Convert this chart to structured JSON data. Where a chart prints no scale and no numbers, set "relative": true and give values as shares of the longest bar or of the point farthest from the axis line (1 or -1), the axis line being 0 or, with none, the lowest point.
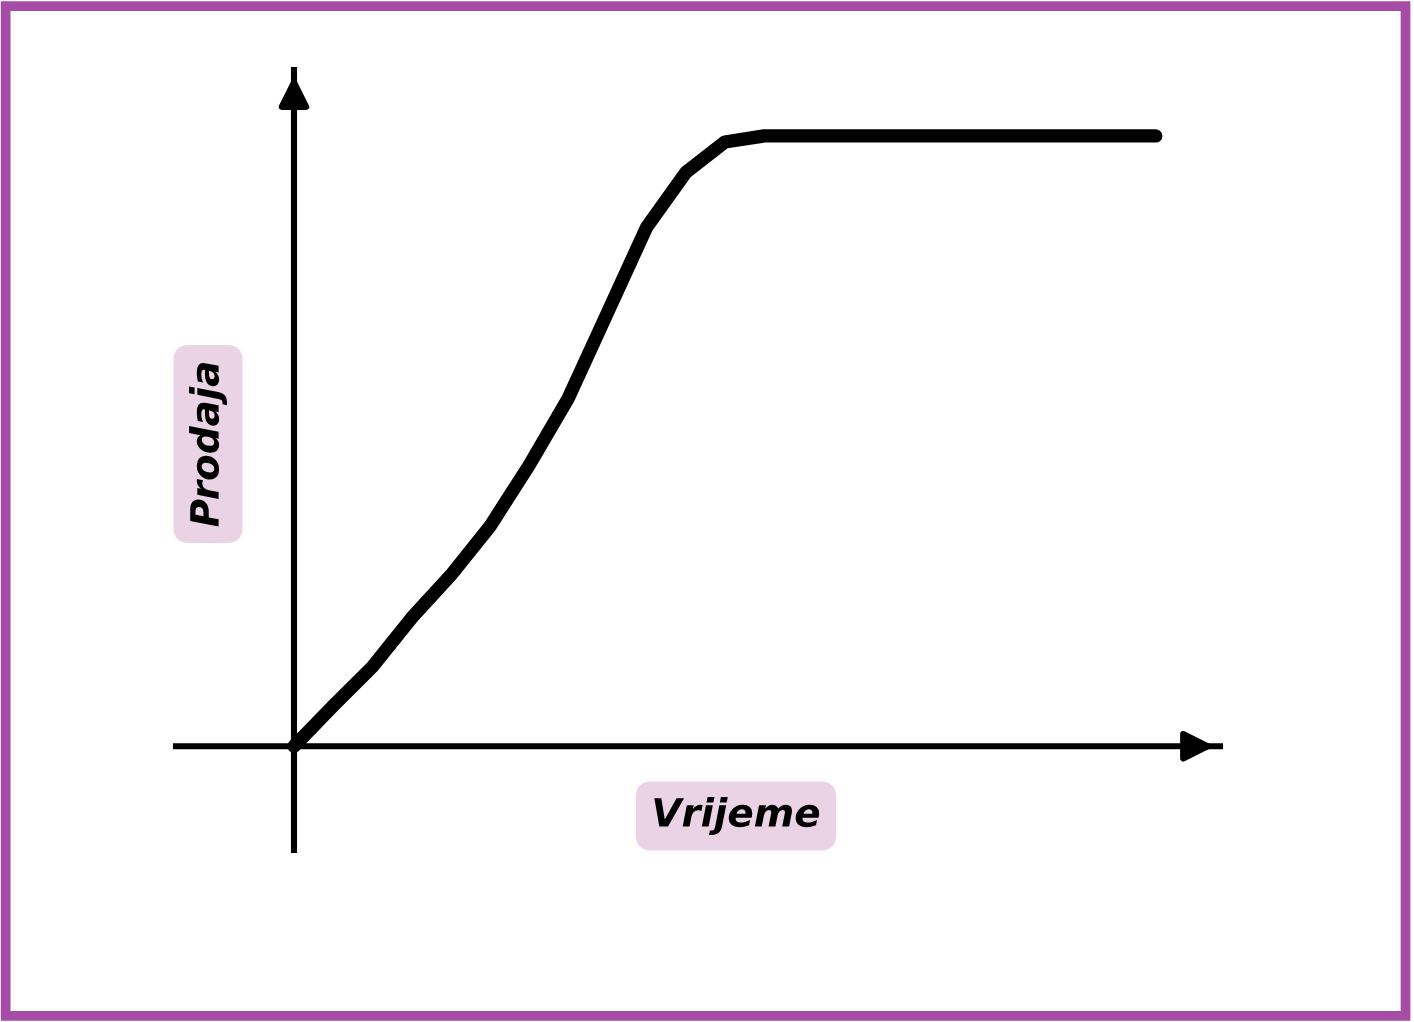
{
  "chart_data": {
    "type": "line",
    "relative": true,
    "xlabel": "Vrijeme",
    "ylabel": "Prodaja",
    "categories": [
      null,
      null,
      null,
      null,
      null,
      null,
      null,
      null,
      null,
      null,
      null,
      null,
      null,
      null,
      null,
      null,
      null,
      null,
      null,
      null,
      null,
      null,
      null
    ],
    "series": [
      {
        "color": "#000000",
        "values": [
          0,
          0.066,
          0.13,
          0.21,
          0.28,
          0.36,
          0.46,
          0.57,
          0.71,
          0.85,
          0.94,
          0.99,
          1,
          1,
          1,
          1,
          1,
          1,
          1,
          1,
          1,
          1,
          1
        ]
      }
    ],
    "marker": "none",
    "line_style": "solid"
  }
}
